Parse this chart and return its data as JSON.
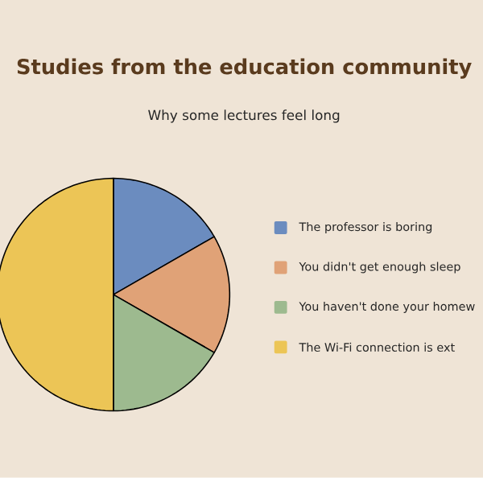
{
  "chart_data": {
    "type": "pie",
    "title": "Studies from the education community",
    "subtitle": "Why some lectures feel long",
    "categories": [
      "The professor is boring",
      "You didn't get enough sleep",
      "You haven't done your homew",
      "The Wi-Fi connection is ext"
    ],
    "values": [
      16.7,
      16.6,
      16.7,
      50
    ],
    "colors": [
      "#6b8cbf",
      "#e0a277",
      "#9dba8f",
      "#ecc556"
    ],
    "legend": "right"
  }
}
